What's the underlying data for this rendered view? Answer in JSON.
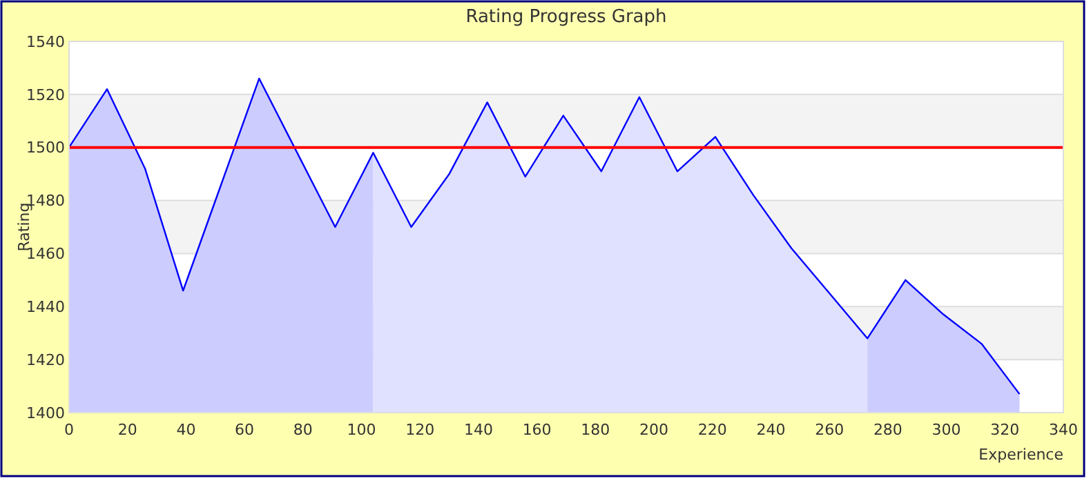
{
  "chart_data": {
    "type": "area",
    "title": "Rating Progress Graph",
    "xlabel": "Experience",
    "ylabel": "Rating",
    "xlim": [
      0,
      340
    ],
    "xticks": [
      0,
      20,
      40,
      60,
      80,
      100,
      120,
      140,
      160,
      180,
      200,
      220,
      240,
      260,
      280,
      300,
      320,
      340
    ],
    "ylim": [
      1400,
      1540
    ],
    "yticks": [
      1400,
      1420,
      1440,
      1460,
      1480,
      1500,
      1520,
      1540
    ],
    "grid": "y",
    "series": [
      {
        "color": "#ccccff",
        "x": [
          0,
          13,
          26,
          39,
          52,
          65,
          78,
          91,
          104
        ],
        "values": [
          1500,
          1522,
          1492,
          1446,
          1486,
          1526,
          1498,
          1470,
          1498
        ]
      },
      {
        "color": "#e0e0ff",
        "x": [
          104,
          117,
          130,
          143,
          156,
          169,
          182,
          195,
          208,
          221,
          234,
          247,
          260,
          273
        ],
        "values": [
          1498,
          1470,
          1490,
          1517,
          1489,
          1512,
          1491,
          1519,
          1491,
          1504,
          1482,
          1462,
          1445,
          1428
        ]
      },
      {
        "color": "#ccccff",
        "x": [
          273,
          286,
          299,
          312,
          325
        ],
        "values": [
          1428,
          1450,
          1437,
          1426,
          1407
        ]
      },
      {
        "type": "line",
        "color": "#0000ff",
        "x": [
          0,
          13,
          26,
          39,
          52,
          65,
          78,
          91,
          104,
          117,
          130,
          143,
          156,
          169,
          182,
          195,
          208,
          221,
          234,
          247,
          260,
          273,
          286,
          299,
          312,
          325
        ],
        "values": [
          1500,
          1522,
          1492,
          1446,
          1486,
          1526,
          1498,
          1470,
          1498,
          1470,
          1490,
          1517,
          1489,
          1512,
          1491,
          1519,
          1491,
          1504,
          1482,
          1462,
          1445,
          1428,
          1450,
          1437,
          1426,
          1407
        ]
      }
    ],
    "ref_lines": [
      {
        "axis": "y",
        "value": 1500,
        "color": "#ff0000"
      }
    ]
  }
}
